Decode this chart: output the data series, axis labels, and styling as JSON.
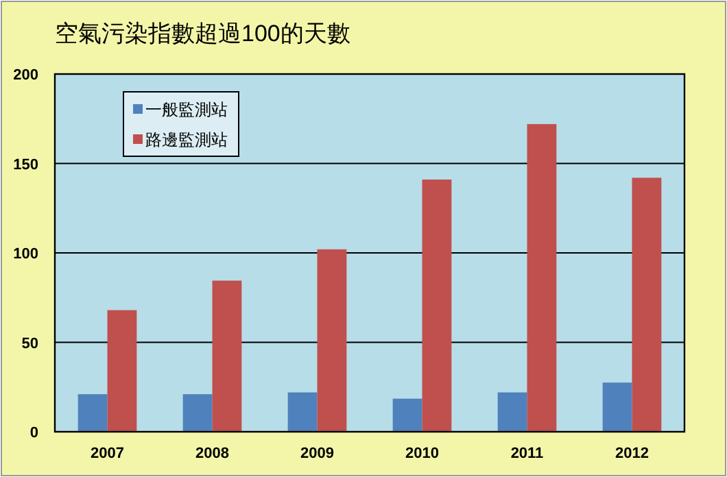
{
  "chart_data": {
    "type": "bar",
    "title": "空氣污染指數超過100的天數",
    "categories": [
      "2007",
      "2008",
      "2009",
      "2010",
      "2011",
      "2012"
    ],
    "series": [
      {
        "name": "一般監測站",
        "color": "#4f81bd",
        "values": [
          21,
          21,
          22,
          18.5,
          22,
          27.5
        ]
      },
      {
        "name": "路邊監測站",
        "color": "#c0504d",
        "values": [
          68,
          84.5,
          102,
          141,
          172,
          142
        ]
      }
    ],
    "ylim": [
      0,
      200
    ],
    "yticks": [
      0,
      50,
      100,
      150,
      200
    ],
    "grid": "y",
    "legend": "top left"
  }
}
